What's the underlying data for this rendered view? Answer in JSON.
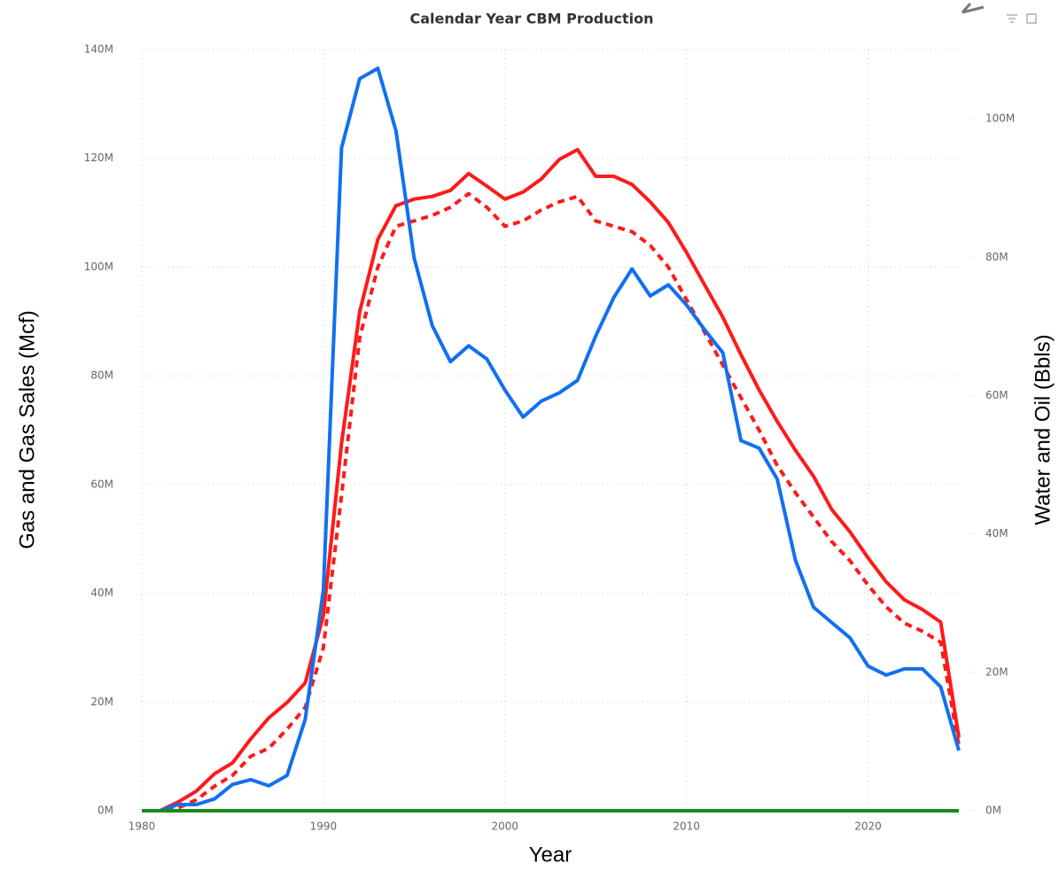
{
  "chart_data": {
    "type": "line",
    "title": "Calendar Year CBM Production",
    "xlabel": "Year",
    "ylabel": "Gas and Gas Sales (Mcf)",
    "y2label": "Water and Oil (Bbls)",
    "x": [
      1980,
      1981,
      1982,
      1983,
      1984,
      1985,
      1986,
      1987,
      1988,
      1989,
      1990,
      1991,
      1992,
      1993,
      1994,
      1995,
      1996,
      1997,
      1998,
      1999,
      2000,
      2001,
      2002,
      2003,
      2004,
      2005,
      2006,
      2007,
      2008,
      2009,
      2010,
      2011,
      2012,
      2013,
      2014,
      2015,
      2016,
      2017,
      2018,
      2019,
      2020,
      2021,
      2022,
      2023,
      2024,
      2025
    ],
    "xlim": [
      1980,
      2025
    ],
    "xticks": [
      1980,
      1990,
      2000,
      2010,
      2020
    ],
    "ylim": [
      0,
      140000000.0
    ],
    "yticks": [
      {
        "value": 0,
        "label": "0M"
      },
      {
        "value": 20000000.0,
        "label": "20M"
      },
      {
        "value": 40000000.0,
        "label": "40M"
      },
      {
        "value": 60000000.0,
        "label": "60M"
      },
      {
        "value": 80000000.0,
        "label": "80M"
      },
      {
        "value": 100000000.0,
        "label": "100M"
      },
      {
        "value": 120000000.0,
        "label": "120M"
      },
      {
        "value": 140000000.0,
        "label": "140M"
      }
    ],
    "y2lim": [
      0,
      110000000.0
    ],
    "y2ticks": [
      {
        "value": 0,
        "label": "0M"
      },
      {
        "value": 20000000.0,
        "label": "20M"
      },
      {
        "value": 40000000.0,
        "label": "40M"
      },
      {
        "value": 60000000.0,
        "label": "60M"
      },
      {
        "value": 80000000.0,
        "label": "80M"
      },
      {
        "value": 100000000.0,
        "label": "100M"
      }
    ],
    "grid": true,
    "series": [
      {
        "color": "#ff1a1a",
        "dashed": false,
        "axis": "y",
        "values": [
          0,
          0,
          1600000.0,
          3600000.0,
          6800000.0,
          8800000.0,
          13200000.0,
          17100000.0,
          19900000.0,
          23500000.0,
          35900000.0,
          67600000.0,
          91800000.0,
          105100000.0,
          111300000.0,
          112500000.0,
          113000000.0,
          114100000.0,
          117200000.0,
          114900000.0,
          112500000.0,
          113800000.0,
          116200000.0,
          119800000.0,
          121600000.0,
          116700000.0,
          116700000.0,
          115200000.0,
          112000000.0,
          108200000.0,
          102700000.0,
          96700000.0,
          90800000.0,
          83900000.0,
          77400000.0,
          71600000.0,
          66300000.0,
          61500000.0,
          55400000.0,
          51300000.0,
          46500000.0,
          42100000.0,
          38800000.0,
          37000000.0,
          34700000.0,
          13500000.0
        ]
      },
      {
        "color": "#ff1a1a",
        "dashed": true,
        "axis": "y",
        "values": [
          0,
          0,
          500000.0,
          2000000.0,
          4500000.0,
          6500000.0,
          10000000.0,
          11500000.0,
          15000000.0,
          19000000.0,
          30000000.0,
          58000000.0,
          87000000.0,
          100000000.0,
          107500000.0,
          108500000.0,
          109500000.0,
          111000000.0,
          113500000.0,
          111000000.0,
          107500000.0,
          108500000.0,
          110500000.0,
          112000000.0,
          113000000.0,
          108500000.0,
          107500000.0,
          106500000.0,
          104000000.0,
          100000000.0,
          94000000.0,
          88000000.0,
          82000000.0,
          76000000.0,
          70000000.0,
          63500000.0,
          58500000.0,
          54000000.0,
          49500000.0,
          46000000.0,
          41500000.0,
          37500000.0,
          34500000.0,
          33000000.0,
          31000000.0,
          12000000.0
        ]
      },
      {
        "color": "#1170f0",
        "dashed": false,
        "axis": "y2",
        "values": [
          0,
          0,
          900000.0,
          900000.0,
          1700000.0,
          3800000.0,
          4500000.0,
          3600000.0,
          5100000.0,
          13200000.0,
          31900000.0,
          95800000.0,
          105800000.0,
          107300000.0,
          98300000.0,
          79900000.0,
          70100000.0,
          64900000.0,
          67200000.0,
          65300000.0,
          60800000.0,
          56900000.0,
          59200000.0,
          60400000.0,
          62200000.0,
          68600000.0,
          74200000.0,
          78300000.0,
          74400000.0,
          76000000.0,
          73100000.0,
          69500000.0,
          66200000.0,
          53500000.0,
          52400000.0,
          47900000.0,
          36200000.0,
          29400000.0,
          27200000.0,
          25000000.0,
          20900000.0,
          19600000.0,
          20500000.0,
          20500000.0,
          17900000.0,
          8700000.0
        ]
      },
      {
        "color": "#1a8a1a",
        "dashed": false,
        "axis": "y2",
        "values": [
          0,
          0,
          0,
          0,
          0,
          0,
          0,
          0,
          0,
          0,
          0,
          0,
          0,
          0,
          0,
          0,
          0,
          0,
          0,
          0,
          0,
          0,
          0,
          0,
          0,
          0,
          0,
          0,
          0,
          0,
          0,
          0,
          0,
          0,
          0,
          0,
          0,
          0,
          0,
          0,
          0,
          0,
          0,
          0,
          0,
          0
        ]
      }
    ]
  }
}
